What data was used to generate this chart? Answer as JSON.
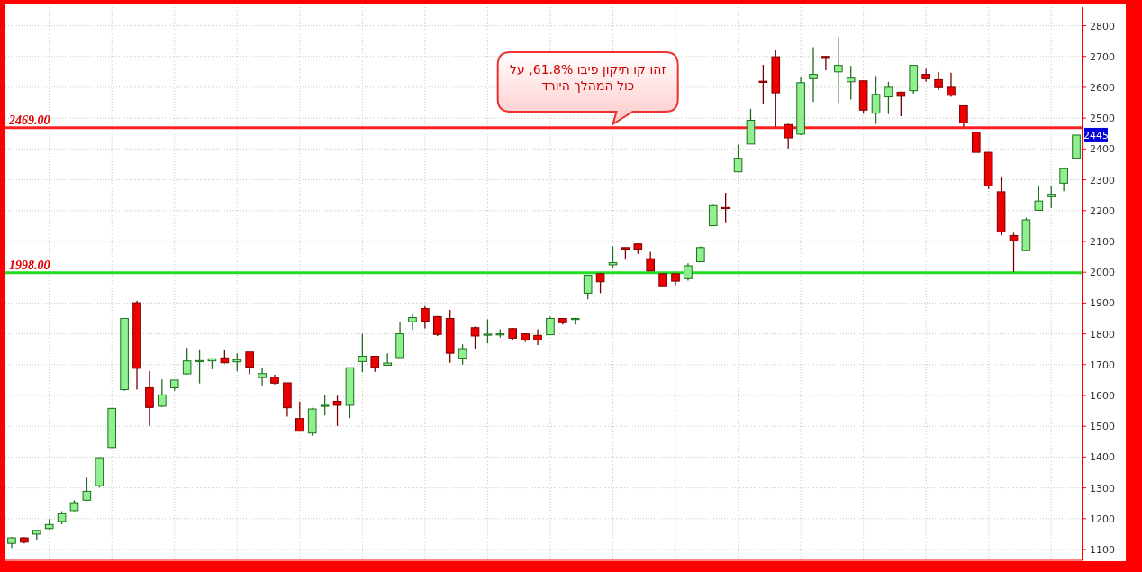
{
  "chart_data": {
    "type": "candlestick",
    "categories": [
      null,
      null,
      null,
      null,
      null,
      null,
      null,
      null,
      null,
      null,
      null,
      null,
      null,
      null,
      null,
      null,
      null,
      null,
      null,
      null,
      null,
      null,
      null,
      null,
      null,
      null,
      null,
      null,
      null,
      null,
      null,
      null,
      null,
      null,
      null,
      null,
      null,
      null,
      null,
      null,
      null,
      null,
      null,
      null,
      null,
      null,
      null,
      null,
      null,
      null,
      null,
      null,
      null,
      null,
      null,
      null,
      null,
      null,
      null,
      null,
      null,
      null,
      null,
      null,
      null,
      null,
      null,
      null,
      null,
      null,
      null,
      null,
      null,
      null,
      null,
      null,
      null,
      null,
      null,
      null,
      null,
      null,
      null,
      null,
      null,
      null
    ],
    "ohlc": [
      [
        1120,
        1140,
        1105,
        1138
      ],
      [
        1138,
        1140,
        1120,
        1124
      ],
      [
        1150,
        1162,
        1131,
        1162
      ],
      [
        1168,
        1199,
        1165,
        1181
      ],
      [
        1191,
        1224,
        1182,
        1216
      ],
      [
        1226,
        1260,
        1224,
        1252
      ],
      [
        1260,
        1333,
        1258,
        1289
      ],
      [
        1307,
        1400,
        1301,
        1398
      ],
      [
        1431,
        1558,
        1431,
        1558
      ],
      [
        1619,
        1850,
        1615,
        1850
      ],
      [
        1901,
        1907,
        1619,
        1688
      ],
      [
        1625,
        1679,
        1501,
        1561
      ],
      [
        1565,
        1652,
        1562,
        1602
      ],
      [
        1625,
        1650,
        1615,
        1650
      ],
      [
        1670,
        1754,
        1668,
        1712
      ],
      [
        1711,
        1750,
        1639,
        1713
      ],
      [
        1712,
        1720,
        1685,
        1719
      ],
      [
        1722,
        1747,
        1704,
        1706
      ],
      [
        1709,
        1737,
        1678,
        1716
      ],
      [
        1741,
        1741,
        1669,
        1692
      ],
      [
        1658,
        1690,
        1630,
        1671
      ],
      [
        1659,
        1667,
        1636,
        1640
      ],
      [
        1641,
        1641,
        1531,
        1560
      ],
      [
        1525,
        1580,
        1484,
        1484
      ],
      [
        1478,
        1560,
        1469,
        1556
      ],
      [
        1566,
        1601,
        1535,
        1568
      ],
      [
        1581,
        1599,
        1501,
        1568
      ],
      [
        1568,
        1690,
        1526,
        1690
      ],
      [
        1710,
        1800,
        1676,
        1727
      ],
      [
        1727,
        1728,
        1677,
        1691
      ],
      [
        1698,
        1737,
        1697,
        1705
      ],
      [
        1723,
        1839,
        1723,
        1800
      ],
      [
        1839,
        1864,
        1812,
        1853
      ],
      [
        1882,
        1890,
        1818,
        1841
      ],
      [
        1856,
        1858,
        1793,
        1798
      ],
      [
        1850,
        1878,
        1706,
        1737
      ],
      [
        1721,
        1766,
        1700,
        1752
      ],
      [
        1820,
        1824,
        1752,
        1793
      ],
      [
        1797,
        1847,
        1769,
        1799
      ],
      [
        1798,
        1815,
        1788,
        1800
      ],
      [
        1817,
        1819,
        1780,
        1786
      ],
      [
        1800,
        1801,
        1774,
        1780
      ],
      [
        1795,
        1815,
        1764,
        1780
      ],
      [
        1797,
        1856,
        1797,
        1850
      ],
      [
        1850,
        1850,
        1830,
        1836
      ],
      [
        1850,
        1852,
        1830,
        1850
      ],
      [
        1932,
        1992,
        1912,
        1990
      ],
      [
        1995,
        1997,
        1932,
        1969
      ],
      [
        2024,
        2084,
        2014,
        2031
      ],
      [
        2080,
        2081,
        2041,
        2075
      ],
      [
        2092,
        2094,
        2060,
        2075
      ],
      [
        2044,
        2066,
        2004,
        2004
      ],
      [
        1995,
        1995,
        1953,
        1953
      ],
      [
        1995,
        1996,
        1958,
        1971
      ],
      [
        1979,
        2029,
        1973,
        2021
      ],
      [
        2034,
        2084,
        2034,
        2080
      ],
      [
        2151,
        2218,
        2151,
        2216
      ],
      [
        2210,
        2258,
        2159,
        2208
      ],
      [
        2326,
        2414,
        2326,
        2370
      ],
      [
        2416,
        2530,
        2416,
        2493
      ],
      [
        2620,
        2673,
        2545,
        2616
      ],
      [
        2699,
        2720,
        2472,
        2582
      ],
      [
        2479,
        2482,
        2402,
        2436
      ],
      [
        2448,
        2635,
        2445,
        2615
      ],
      [
        2628,
        2730,
        2552,
        2642
      ],
      [
        2700,
        2701,
        2655,
        2697
      ],
      [
        2650,
        2761,
        2550,
        2671
      ],
      [
        2618,
        2669,
        2560,
        2630
      ],
      [
        2621,
        2621,
        2514,
        2526
      ],
      [
        2516,
        2637,
        2481,
        2577
      ],
      [
        2569,
        2618,
        2513,
        2600
      ],
      [
        2584,
        2586,
        2506,
        2571
      ],
      [
        2589,
        2671,
        2579,
        2671
      ],
      [
        2642,
        2660,
        2618,
        2628
      ],
      [
        2625,
        2650,
        2592,
        2599
      ],
      [
        2600,
        2647,
        2569,
        2574
      ],
      [
        2540,
        2540,
        2472,
        2485
      ],
      [
        2455,
        2456,
        2389,
        2389
      ],
      [
        2389,
        2390,
        2270,
        2280
      ],
      [
        2261,
        2309,
        2120,
        2131
      ],
      [
        2119,
        2128,
        2000,
        2102
      ],
      [
        2070,
        2177,
        2070,
        2170
      ],
      [
        2201,
        2282,
        2199,
        2231
      ],
      [
        2245,
        2280,
        2209,
        2253
      ],
      [
        2289,
        2340,
        2263,
        2336
      ],
      [
        2370,
        2445,
        2370,
        2445
      ]
    ],
    "ylim": [
      1065,
      2860
    ],
    "yticks": [
      1100,
      1200,
      1300,
      1400,
      1500,
      1600,
      1700,
      1800,
      1900,
      2000,
      2100,
      2200,
      2300,
      2400,
      2500,
      2600,
      2700,
      2800
    ],
    "tick_labels": "y",
    "grid": true,
    "ref_lines": [
      {
        "axis": "y",
        "value": 2469,
        "label": "2469.00",
        "color": "#ff2020"
      },
      {
        "axis": "y",
        "value": 1998,
        "label": "1998.00",
        "color": "#22dd22"
      }
    ],
    "annotations": [
      {
        "text": "זהו קו תיקון פיבו  61.8%, על\nכול המהלך היורד",
        "y": 2469
      },
      {
        "text": "2445",
        "y": 2445
      }
    ]
  }
}
